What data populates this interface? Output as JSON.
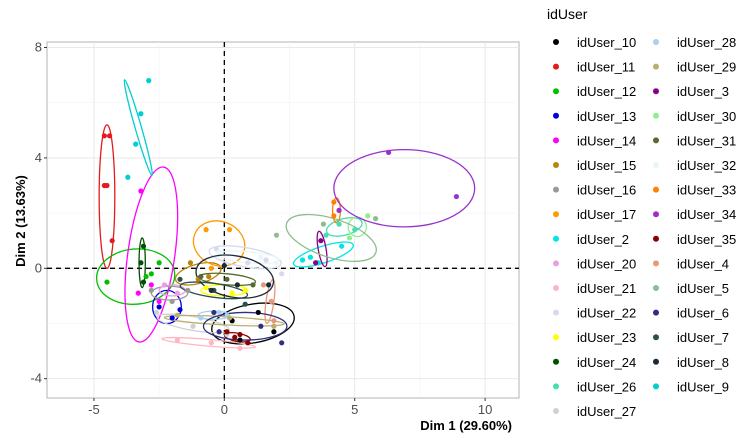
{
  "chart_data": {
    "type": "scatter",
    "xlabel": "Dim 1 (29.60%)",
    "ylabel": "Dim 2 (13.63%)",
    "xlim": [
      -6.8,
      11.3
    ],
    "ylim": [
      -4.7,
      8.2
    ],
    "x_ticks": [
      -5,
      0,
      5,
      10
    ],
    "y_ticks": [
      -4,
      0,
      4,
      8
    ],
    "grid": true,
    "reference_lines": {
      "x": 0,
      "y": 0,
      "style": "dashed"
    },
    "legend": {
      "title": "idUser",
      "placement": "right"
    },
    "series": [
      {
        "name": "idUser_10",
        "color": "#000000",
        "points": [
          [
            0.3,
            -1.9
          ],
          [
            1.3,
            -1.6
          ],
          [
            1.9,
            -2.3
          ],
          [
            0.6,
            -2.6
          ]
        ],
        "ellipse": {
          "cx": 1.1,
          "cy": -2.0,
          "rx": 1.6,
          "ry": 0.7,
          "angle": 10
        }
      },
      {
        "name": "idUser_11",
        "color": "#e41a1c",
        "points": [
          [
            -4.6,
            4.8
          ],
          [
            -4.4,
            4.8
          ],
          [
            -4.6,
            3.0
          ],
          [
            -4.5,
            3.0
          ],
          [
            -4.3,
            1.0
          ]
        ],
        "ellipse": {
          "cx": -4.5,
          "cy": 2.6,
          "rx": 0.3,
          "ry": 2.6,
          "angle": 0
        }
      },
      {
        "name": "idUser_12",
        "color": "#00c000",
        "points": [
          [
            -4.5,
            -0.5
          ],
          [
            -2.8,
            -0.2
          ],
          [
            -2.5,
            0.2
          ],
          [
            -3.0,
            -0.3
          ]
        ],
        "ellipse": {
          "cx": -3.4,
          "cy": -0.3,
          "rx": 1.5,
          "ry": 1.0,
          "angle": 5
        }
      },
      {
        "name": "idUser_13",
        "color": "#0000dd",
        "points": [
          [
            -2.0,
            -1.8
          ],
          [
            -2.5,
            -1.4
          ],
          [
            -1.7,
            -1.5
          ]
        ],
        "ellipse": {
          "cx": -2.2,
          "cy": -1.4,
          "rx": 0.55,
          "ry": 0.6,
          "angle": 0
        }
      },
      {
        "name": "idUser_14",
        "color": "#ff00ff",
        "points": [
          [
            -3.2,
            2.8
          ],
          [
            -2.8,
            -0.6
          ],
          [
            -3.3,
            -0.9
          ],
          [
            -2.5,
            -1.2
          ]
        ],
        "ellipse": {
          "cx": -2.8,
          "cy": 0.5,
          "rx": 0.9,
          "ry": 3.2,
          "angle": -8
        }
      },
      {
        "name": "idUser_15",
        "color": "#b8860b",
        "points": [
          [
            -1.3,
            0.2
          ],
          [
            -0.6,
            -0.3
          ],
          [
            -1.0,
            -0.4
          ]
        ],
        "ellipse": {
          "cx": -1.0,
          "cy": -0.2,
          "rx": 0.9,
          "ry": 0.35,
          "angle": 15
        }
      },
      {
        "name": "idUser_16",
        "color": "#999999",
        "points": [
          [
            -2.8,
            -0.8
          ],
          [
            -1.4,
            -0.8
          ],
          [
            -2.0,
            -1.2
          ]
        ],
        "ellipse": {
          "cx": -2.1,
          "cy": -0.9,
          "rx": 0.7,
          "ry": 0.25,
          "angle": 0
        }
      },
      {
        "name": "idUser_17",
        "color": "#ff9900",
        "points": [
          [
            -0.7,
            1.4
          ],
          [
            0.2,
            1.4
          ],
          [
            -0.5,
            0.0
          ]
        ],
        "ellipse": {
          "cx": -0.2,
          "cy": 0.9,
          "rx": 1.0,
          "ry": 0.8,
          "angle": -20
        }
      },
      {
        "name": "idUser_2",
        "color": "#00e5e5",
        "points": [
          [
            3.0,
            0.3
          ],
          [
            3.6,
            0.2
          ],
          [
            4.5,
            0.8
          ],
          [
            3.3,
            0.4
          ]
        ],
        "ellipse": {
          "cx": 3.8,
          "cy": 0.5,
          "rx": 1.2,
          "ry": 0.3,
          "angle": 18
        }
      },
      {
        "name": "idUser_20",
        "color": "#e8a0e0",
        "points": [
          [
            -2.3,
            -0.6
          ],
          [
            -1.8,
            -0.9
          ]
        ],
        "ellipse": {
          "cx": -2.0,
          "cy": -0.8,
          "rx": 0.5,
          "ry": 0.2,
          "angle": 0
        }
      },
      {
        "name": "idUser_21",
        "color": "#ffb6c1",
        "points": [
          [
            -1.8,
            -2.6
          ],
          [
            -0.5,
            -2.7
          ],
          [
            0.6,
            -2.9
          ]
        ],
        "ellipse": {
          "cx": -0.6,
          "cy": -2.7,
          "rx": 1.8,
          "ry": 0.12,
          "angle": -5
        }
      },
      {
        "name": "idUser_22",
        "color": "#d8d8f0",
        "points": [
          [
            -0.3,
            0.7
          ],
          [
            0.9,
            0.2
          ],
          [
            1.6,
            0.3
          ],
          [
            2.2,
            -0.2
          ]
        ],
        "ellipse": {
          "cx": 0.8,
          "cy": 0.4,
          "rx": 1.4,
          "ry": 0.35,
          "angle": -10
        }
      },
      {
        "name": "idUser_23",
        "color": "#ffff00",
        "points": [
          [
            -0.7,
            -0.7
          ],
          [
            0.3,
            -0.9
          ],
          [
            0.8,
            -0.8
          ]
        ],
        "ellipse": {
          "cx": 0.0,
          "cy": -0.8,
          "rx": 0.9,
          "ry": 0.2,
          "angle": 0
        }
      },
      {
        "name": "idUser_24",
        "color": "#005000",
        "points": [
          [
            -3.1,
            0.8
          ],
          [
            -3.2,
            0.2
          ],
          [
            -3.1,
            -0.5
          ]
        ],
        "ellipse": {
          "cx": -3.15,
          "cy": 0.2,
          "rx": 0.12,
          "ry": 0.9,
          "angle": 0
        }
      },
      {
        "name": "idUser_26",
        "color": "#40e0b0",
        "points": [
          [
            4.4,
            1.6
          ],
          [
            5.0,
            1.4
          ],
          [
            3.9,
            1.2
          ]
        ],
        "ellipse": {
          "cx": 4.6,
          "cy": 1.5,
          "rx": 0.7,
          "ry": 0.3,
          "angle": 15
        }
      },
      {
        "name": "idUser_27",
        "color": "#d0d0d0",
        "points": [
          [
            -2.6,
            -1.6
          ],
          [
            -1.2,
            -2.1
          ],
          [
            0.1,
            -2.4
          ]
        ],
        "ellipse": {
          "cx": -1.2,
          "cy": -2.0,
          "rx": 1.4,
          "ry": 0.25,
          "angle": -10
        }
      },
      {
        "name": "idUser_28",
        "color": "#a8d0f0",
        "points": [
          [
            -0.9,
            -1.8
          ],
          [
            -0.2,
            -1.6
          ],
          [
            0.1,
            -1.7
          ]
        ],
        "ellipse": {
          "cx": -0.4,
          "cy": -1.7,
          "rx": 0.6,
          "ry": 0.15,
          "angle": 0
        }
      },
      {
        "name": "idUser_29",
        "color": "#b8b070",
        "points": [
          [
            -1.8,
            -1.7
          ],
          [
            0.2,
            -1.8
          ],
          [
            1.9,
            -2.1
          ]
        ],
        "ellipse": {
          "cx": 0.0,
          "cy": -1.9,
          "rx": 2.3,
          "ry": 0.15,
          "angle": -3
        }
      },
      {
        "name": "idUser_3",
        "color": "#8b008b",
        "points": [
          [
            3.7,
            1.0
          ],
          [
            3.5,
            0.2
          ]
        ],
        "ellipse": {
          "cx": 3.75,
          "cy": 0.7,
          "rx": 0.15,
          "ry": 0.65,
          "angle": 10
        }
      },
      {
        "name": "idUser_30",
        "color": "#90ee90",
        "points": [
          [
            4.8,
            1.1
          ],
          [
            5.5,
            1.9
          ]
        ],
        "ellipse": {
          "cx": 5.1,
          "cy": 1.5,
          "rx": 0.35,
          "ry": 0.35,
          "angle": 0
        }
      },
      {
        "name": "idUser_31",
        "color": "#556b2f",
        "points": [
          [
            -0.9,
            -0.3
          ],
          [
            0.1,
            -0.4
          ],
          [
            1.1,
            -0.6
          ]
        ],
        "ellipse": {
          "cx": 0.1,
          "cy": -0.4,
          "rx": 1.1,
          "ry": 0.2,
          "angle": -5
        }
      },
      {
        "name": "idUser_32",
        "color": "#e6f7f5",
        "points": [
          [
            -0.2,
            0.6
          ],
          [
            1.4,
            0.4
          ],
          [
            2.0,
            0.2
          ]
        ],
        "ellipse": {
          "cx": 0.9,
          "cy": 0.4,
          "rx": 1.2,
          "ry": 0.2,
          "angle": -5
        }
      },
      {
        "name": "idUser_33",
        "color": "#ff7f00",
        "points": [
          [
            4.2,
            2.4
          ],
          [
            4.4,
            2.1
          ],
          [
            4.2,
            1.9
          ]
        ],
        "ellipse": {
          "cx": 4.3,
          "cy": 2.1,
          "rx": 0.15,
          "ry": 0.45,
          "angle": 0
        }
      },
      {
        "name": "idUser_34",
        "color": "#9932cc",
        "points": [
          [
            6.3,
            4.2
          ],
          [
            8.9,
            2.6
          ],
          [
            4.4,
            2.1
          ]
        ],
        "ellipse": {
          "cx": 6.9,
          "cy": 2.9,
          "rx": 2.7,
          "ry": 1.4,
          "angle": 0
        }
      },
      {
        "name": "idUser_35",
        "color": "#8b0000",
        "points": [
          [
            0.1,
            -2.3
          ],
          [
            0.6,
            -2.4
          ],
          [
            0.9,
            -2.7
          ],
          [
            0.4,
            -2.5
          ]
        ],
        "ellipse": {
          "cx": 0.5,
          "cy": -2.5,
          "rx": 0.5,
          "ry": 0.15,
          "angle": -10
        }
      },
      {
        "name": "idUser_4",
        "color": "#e9967a",
        "points": [
          [
            1.5,
            -0.6
          ],
          [
            1.8,
            -1.2
          ],
          [
            1.9,
            -1.9
          ]
        ],
        "ellipse": {
          "cx": 1.75,
          "cy": -1.2,
          "rx": 0.15,
          "ry": 0.8,
          "angle": -8
        }
      },
      {
        "name": "idUser_5",
        "color": "#8fbc8f",
        "points": [
          [
            2.0,
            1.2
          ],
          [
            3.8,
            1.6
          ],
          [
            5.8,
            1.8
          ]
        ],
        "ellipse": {
          "cx": 4.1,
          "cy": 1.1,
          "rx": 1.8,
          "ry": 0.7,
          "angle": -18
        }
      },
      {
        "name": "idUser_6",
        "color": "#2f2f7f",
        "points": [
          [
            -0.2,
            -2.3
          ],
          [
            1.4,
            -2.1
          ],
          [
            2.2,
            -2.7
          ],
          [
            -0.4,
            -1.6
          ]
        ],
        "ellipse": {
          "cx": 0.8,
          "cy": -2.1,
          "rx": 1.6,
          "ry": 0.5,
          "angle": 0
        }
      },
      {
        "name": "idUser_7",
        "color": "#2f4f4f",
        "points": [
          [
            -1.7,
            -0.4
          ],
          [
            -0.4,
            -0.8
          ],
          [
            0.8,
            -1.3
          ]
        ],
        "ellipse": {
          "cx": -0.4,
          "cy": -0.8,
          "rx": 1.3,
          "ry": 0.25,
          "angle": -8
        }
      },
      {
        "name": "idUser_8",
        "color": "#1a2a3a",
        "points": [
          [
            -0.5,
            -0.8
          ],
          [
            0.5,
            -0.6
          ],
          [
            1.7,
            -0.6
          ],
          [
            0.0,
            0.1
          ]
        ],
        "ellipse": {
          "cx": 0.4,
          "cy": -0.3,
          "rx": 1.5,
          "ry": 0.75,
          "angle": -10
        }
      },
      {
        "name": "idUser_9",
        "color": "#00ced1",
        "points": [
          [
            -2.9,
            6.8
          ],
          [
            -3.2,
            5.6
          ],
          [
            -3.4,
            4.5
          ],
          [
            -3.7,
            3.3
          ]
        ],
        "ellipse": {
          "cx": -3.3,
          "cy": 5.1,
          "rx": 0.12,
          "ry": 1.8,
          "angle": 16
        }
      }
    ]
  }
}
